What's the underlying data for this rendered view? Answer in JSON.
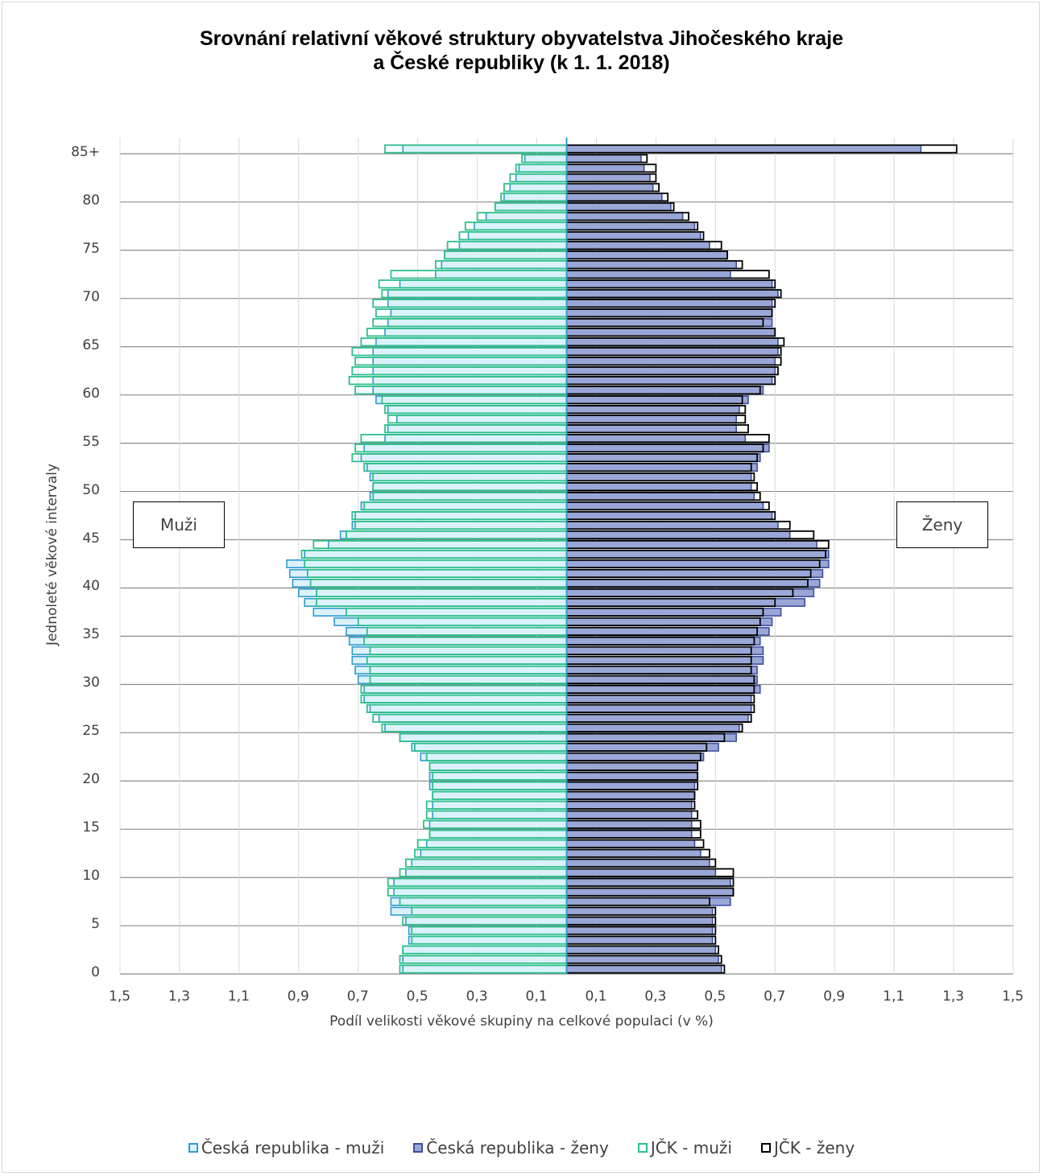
{
  "chart_data": {
    "type": "bar",
    "orientation": "horizontal-pyramid",
    "title_line1": "Srovnání relativní věkové struktury obyvatelstva Jihočeského kraje",
    "title_line2": "a České republiky (k 1. 1. 2018)",
    "xlabel": "Podíl velikosti věkové skupiny na celkové populaci (v %)",
    "ylabel": "Jednoleté věkové intervaly",
    "left_box": "Muži",
    "right_box": "Ženy",
    "x_ticks": [
      "1,5",
      "1,3",
      "1,1",
      "0,9",
      "0,7",
      "0,5",
      "0,3",
      "0,1",
      "0,1",
      "0,3",
      "0,5",
      "0,7",
      "0,9",
      "1,1",
      "1,3",
      "1,5"
    ],
    "x_tick_values": [
      -1.5,
      -1.3,
      -1.1,
      -0.9,
      -0.7,
      -0.5,
      -0.3,
      -0.1,
      0.1,
      0.3,
      0.5,
      0.7,
      0.9,
      1.1,
      1.3,
      1.5
    ],
    "xlim": [
      -1.5,
      1.5
    ],
    "y_ticks": [
      "0",
      "5",
      "10",
      "15",
      "20",
      "25",
      "30",
      "35",
      "40",
      "45",
      "50",
      "55",
      "60",
      "65",
      "70",
      "75",
      "80",
      "85+"
    ],
    "y_tick_ages": [
      0,
      5,
      10,
      15,
      20,
      25,
      30,
      35,
      40,
      45,
      50,
      55,
      60,
      65,
      70,
      75,
      80,
      85
    ],
    "ages": [
      0,
      1,
      2,
      3,
      4,
      5,
      6,
      7,
      8,
      9,
      10,
      11,
      12,
      13,
      14,
      15,
      16,
      17,
      18,
      19,
      20,
      21,
      22,
      23,
      24,
      25,
      26,
      27,
      28,
      29,
      30,
      31,
      32,
      33,
      34,
      35,
      36,
      37,
      38,
      39,
      40,
      41,
      42,
      43,
      44,
      45,
      46,
      47,
      48,
      49,
      50,
      51,
      52,
      53,
      54,
      55,
      56,
      57,
      58,
      59,
      60,
      61,
      62,
      63,
      64,
      65,
      66,
      67,
      68,
      69,
      70,
      71,
      72,
      73,
      74,
      75,
      76,
      77,
      78,
      79,
      80,
      81,
      82,
      83,
      84,
      85
    ],
    "grid": true,
    "legend_position": "bottom",
    "series": [
      {
        "name": "Česká republika - muži",
        "side": "left",
        "fill": "#dcf2fb",
        "stroke": "#2f9bd1",
        "values": [
          0.55,
          0.55,
          0.55,
          0.53,
          0.53,
          0.54,
          0.59,
          0.59,
          0.58,
          0.58,
          0.54,
          0.52,
          0.49,
          0.47,
          0.46,
          0.46,
          0.45,
          0.45,
          0.45,
          0.46,
          0.46,
          0.46,
          0.49,
          0.52,
          0.56,
          0.61,
          0.63,
          0.66,
          0.68,
          0.68,
          0.7,
          0.71,
          0.72,
          0.72,
          0.73,
          0.74,
          0.78,
          0.85,
          0.88,
          0.9,
          0.92,
          0.93,
          0.94,
          0.88,
          0.8,
          0.76,
          0.72,
          0.71,
          0.69,
          0.66,
          0.65,
          0.66,
          0.67,
          0.69,
          0.68,
          0.61,
          0.6,
          0.57,
          0.6,
          0.64,
          0.65,
          0.65,
          0.65,
          0.65,
          0.65,
          0.64,
          0.61,
          0.6,
          0.59,
          0.6,
          0.6,
          0.56,
          0.44,
          0.42,
          0.41,
          0.36,
          0.33,
          0.31,
          0.27,
          0.24,
          0.21,
          0.19,
          0.17,
          0.16,
          0.14,
          0.55
        ]
      },
      {
        "name": "Česká republika - ženy",
        "side": "right",
        "fill": "#9aa7d6",
        "stroke": "#3f4f9f",
        "values": [
          0.52,
          0.51,
          0.5,
          0.49,
          0.49,
          0.49,
          0.49,
          0.55,
          0.56,
          0.55,
          0.5,
          0.48,
          0.45,
          0.43,
          0.42,
          0.42,
          0.42,
          0.42,
          0.43,
          0.43,
          0.44,
          0.44,
          0.46,
          0.51,
          0.57,
          0.58,
          0.61,
          0.62,
          0.62,
          0.65,
          0.64,
          0.64,
          0.66,
          0.66,
          0.65,
          0.68,
          0.69,
          0.72,
          0.8,
          0.83,
          0.85,
          0.86,
          0.88,
          0.88,
          0.84,
          0.75,
          0.71,
          0.69,
          0.66,
          0.63,
          0.62,
          0.62,
          0.64,
          0.65,
          0.68,
          0.6,
          0.57,
          0.57,
          0.58,
          0.61,
          0.66,
          0.69,
          0.7,
          0.7,
          0.71,
          0.71,
          0.7,
          0.69,
          0.69,
          0.69,
          0.71,
          0.69,
          0.55,
          0.57,
          0.54,
          0.48,
          0.45,
          0.43,
          0.39,
          0.35,
          0.32,
          0.29,
          0.28,
          0.26,
          0.25,
          1.19
        ]
      },
      {
        "name": "JČK - muži",
        "side": "left",
        "fill": "none",
        "stroke": "#2dbf8a",
        "values": [
          0.56,
          0.56,
          0.55,
          0.52,
          0.52,
          0.55,
          0.52,
          0.56,
          0.6,
          0.6,
          0.56,
          0.54,
          0.51,
          0.5,
          0.46,
          0.48,
          0.47,
          0.47,
          0.45,
          0.45,
          0.45,
          0.46,
          0.47,
          0.51,
          0.56,
          0.62,
          0.65,
          0.67,
          0.69,
          0.69,
          0.66,
          0.66,
          0.67,
          0.66,
          0.68,
          0.67,
          0.7,
          0.74,
          0.84,
          0.84,
          0.86,
          0.87,
          0.88,
          0.89,
          0.85,
          0.74,
          0.71,
          0.72,
          0.68,
          0.65,
          0.65,
          0.65,
          0.68,
          0.72,
          0.71,
          0.69,
          0.61,
          0.6,
          0.61,
          0.62,
          0.71,
          0.73,
          0.72,
          0.71,
          0.72,
          0.69,
          0.67,
          0.65,
          0.64,
          0.65,
          0.62,
          0.63,
          0.59,
          0.44,
          0.41,
          0.4,
          0.36,
          0.34,
          0.3,
          0.24,
          0.22,
          0.21,
          0.19,
          0.17,
          0.15,
          0.61
        ]
      },
      {
        "name": "JČK - ženy",
        "side": "right",
        "fill": "none",
        "stroke": "#000000",
        "values": [
          0.53,
          0.52,
          0.51,
          0.5,
          0.5,
          0.5,
          0.5,
          0.48,
          0.56,
          0.56,
          0.56,
          0.5,
          0.48,
          0.46,
          0.45,
          0.45,
          0.44,
          0.43,
          0.43,
          0.44,
          0.44,
          0.44,
          0.45,
          0.47,
          0.53,
          0.59,
          0.62,
          0.63,
          0.63,
          0.63,
          0.63,
          0.62,
          0.62,
          0.62,
          0.63,
          0.64,
          0.65,
          0.66,
          0.7,
          0.76,
          0.81,
          0.82,
          0.85,
          0.87,
          0.88,
          0.83,
          0.75,
          0.7,
          0.68,
          0.65,
          0.64,
          0.63,
          0.62,
          0.64,
          0.66,
          0.68,
          0.61,
          0.6,
          0.6,
          0.59,
          0.65,
          0.7,
          0.71,
          0.72,
          0.72,
          0.73,
          0.7,
          0.66,
          0.69,
          0.7,
          0.72,
          0.7,
          0.68,
          0.59,
          0.54,
          0.52,
          0.46,
          0.44,
          0.41,
          0.36,
          0.34,
          0.31,
          0.3,
          0.3,
          0.27,
          1.31
        ]
      }
    ]
  }
}
